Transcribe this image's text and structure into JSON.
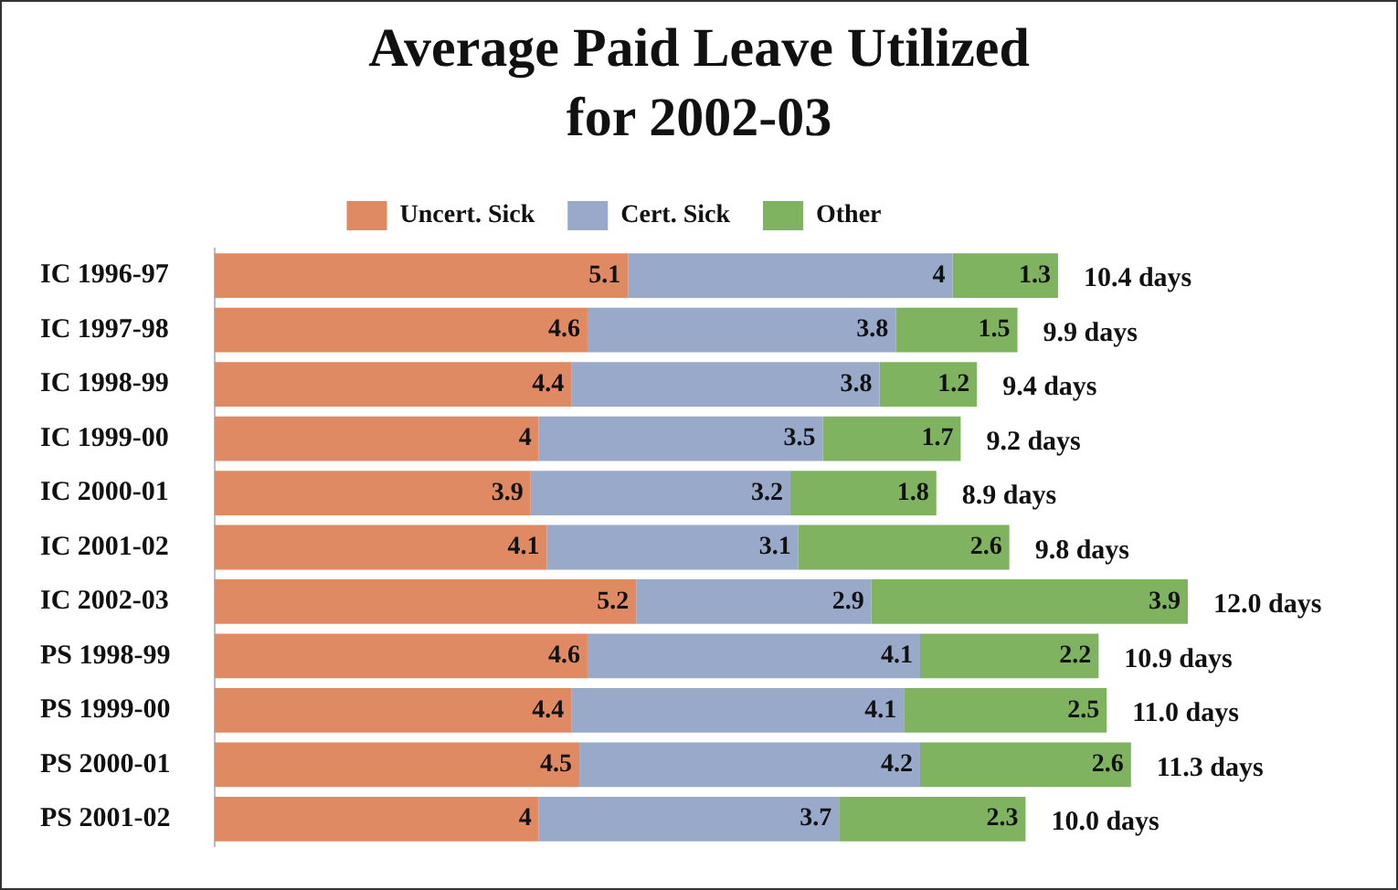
{
  "chart_data": {
    "type": "bar",
    "title": "Average Paid Leave Utilized\nfor 2002-03",
    "orientation": "horizontal",
    "stacked": true,
    "legend": "top",
    "grid": false,
    "data_labels": true,
    "tick_labels": "y",
    "categories": [
      "IC 1996-97",
      "IC 1997-98",
      "IC 1998-99",
      "IC 1999-00",
      "IC 2000-01",
      "IC 2001-02",
      "IC 2002-03",
      "PS 1998-99",
      "PS 1999-00",
      "PS 2000-01",
      "PS 2001-02"
    ],
    "series": [
      {
        "name": "Uncert. Sick",
        "color": "#e08a64",
        "values": [
          5.1,
          4.6,
          4.4,
          4,
          3.9,
          4.1,
          5.2,
          4.6,
          4.4,
          4.5,
          4
        ]
      },
      {
        "name": "Cert. Sick",
        "color": "#98a9c9",
        "values": [
          4,
          3.8,
          3.8,
          3.5,
          3.2,
          3.1,
          2.9,
          4.1,
          4.1,
          4.2,
          3.7
        ]
      },
      {
        "name": "Other",
        "color": "#80b360",
        "values": [
          1.3,
          1.5,
          1.2,
          1.7,
          1.8,
          2.6,
          3.9,
          2.2,
          2.5,
          2.6,
          2.3
        ]
      }
    ],
    "totals": [
      "10.4 days",
      "9.9 days",
      "9.4 days",
      "9.2 days",
      "8.9 days",
      "9.8 days",
      "12.0 days",
      "10.9 days",
      "11.0 days",
      "11.3 days",
      "10.0 days"
    ]
  }
}
